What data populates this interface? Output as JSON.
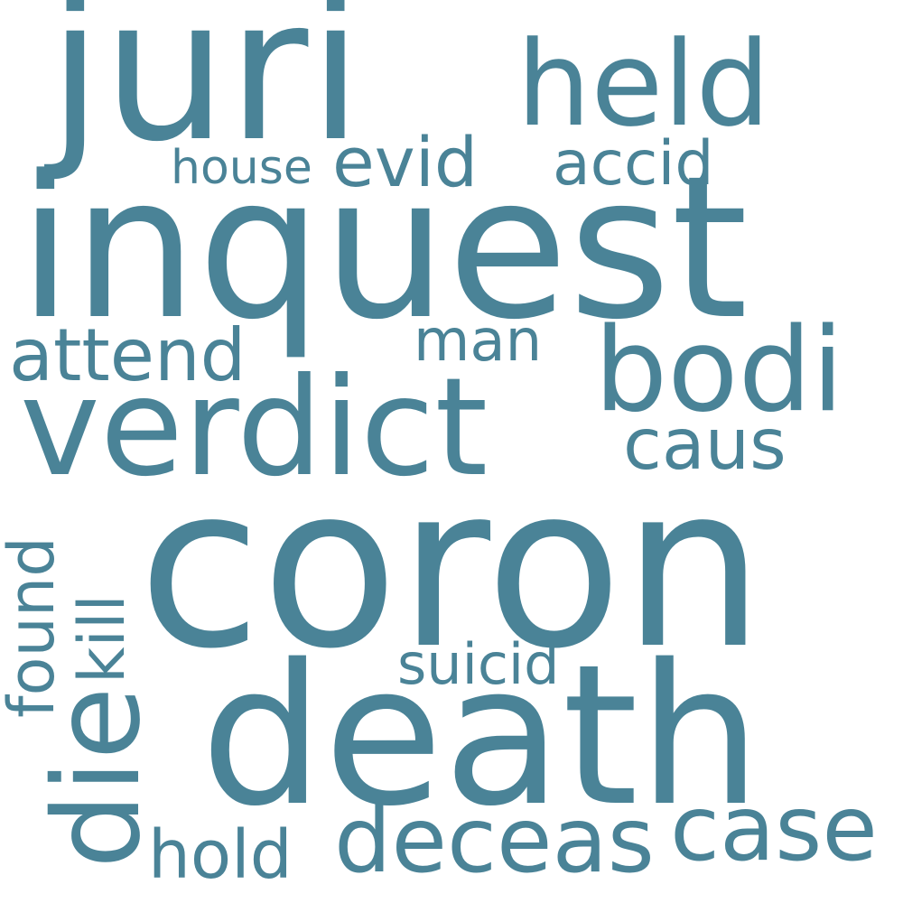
{
  "word_cloud": {
    "background_color": "#ffffff",
    "text_color": "#4a8397",
    "words": {
      "coron": "coron",
      "inquest": "inquest",
      "death": "death",
      "juri": "juri",
      "verdict": "verdict",
      "bodi": "bodi",
      "held": "held",
      "die": "die",
      "deceas": "deceas",
      "case": "case",
      "attend": "attend",
      "evid": "evid",
      "accid": "accid",
      "caus": "caus",
      "hold": "hold",
      "kill": "kill",
      "found": "found",
      "man": "man",
      "suicid": "suicid",
      "house": "house"
    }
  }
}
